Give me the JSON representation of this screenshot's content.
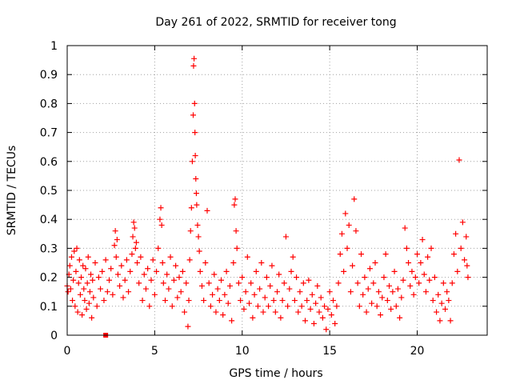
{
  "chart_data": {
    "type": "scatter",
    "title": "Day 261 of 2022, SRMTID for receiver tong",
    "xlabel": "GPS time / hours",
    "ylabel": "SRMTID / TECUs",
    "xlim": [
      0,
      24
    ],
    "ylim": [
      0,
      1
    ],
    "xticks": [
      0,
      5,
      10,
      15,
      20
    ],
    "xtick_labels": [
      "0",
      "5",
      "10",
      "15",
      "20"
    ],
    "yticks": [
      0,
      0.1,
      0.2,
      0.3,
      0.4,
      0.5,
      0.6,
      0.7,
      0.8,
      0.9,
      1
    ],
    "ytick_labels": [
      "0",
      "0.1",
      "0.2",
      "0.3",
      "0.4",
      "0.5",
      "0.6",
      "0.7",
      "0.8",
      "0.9",
      "1"
    ],
    "grid": true,
    "marker": "+",
    "color": "#ff0000",
    "series": [
      {
        "name": "SRMTID",
        "points": [
          [
            0.0,
            0.17
          ],
          [
            0.05,
            0.15
          ],
          [
            0.1,
            0.21
          ],
          [
            0.15,
            0.24
          ],
          [
            0.2,
            0.16
          ],
          [
            0.25,
            0.27
          ],
          [
            0.3,
            0.12
          ],
          [
            0.35,
            0.19
          ],
          [
            0.4,
            0.29
          ],
          [
            0.45,
            0.1
          ],
          [
            0.5,
            0.22
          ],
          [
            0.55,
            0.3
          ],
          [
            0.6,
            0.08
          ],
          [
            0.65,
            0.18
          ],
          [
            0.7,
            0.26
          ],
          [
            0.75,
            0.14
          ],
          [
            0.8,
            0.2
          ],
          [
            0.85,
            0.07
          ],
          [
            0.9,
            0.24
          ],
          [
            0.95,
            0.16
          ],
          [
            1.0,
            0.12
          ],
          [
            1.05,
            0.23
          ],
          [
            1.1,
            0.09
          ],
          [
            1.15,
            0.18
          ],
          [
            1.2,
            0.27
          ],
          [
            1.25,
            0.11
          ],
          [
            1.3,
            0.15
          ],
          [
            1.35,
            0.21
          ],
          [
            1.4,
            0.06
          ],
          [
            1.45,
            0.19
          ],
          [
            1.5,
            0.13
          ],
          [
            1.6,
            0.25
          ],
          [
            1.7,
            0.1
          ],
          [
            1.8,
            0.2
          ],
          [
            1.9,
            0.16
          ],
          [
            2.0,
            0.22
          ],
          [
            2.1,
            0.12
          ],
          [
            2.2,
            0.26
          ],
          [
            2.3,
            0.15
          ],
          [
            2.4,
            0.19
          ],
          [
            2.5,
            0.23
          ],
          [
            2.6,
            0.14
          ],
          [
            2.7,
            0.31
          ],
          [
            2.75,
            0.36
          ],
          [
            2.8,
            0.27
          ],
          [
            2.85,
            0.33
          ],
          [
            2.9,
            0.21
          ],
          [
            3.0,
            0.17
          ],
          [
            3.1,
            0.24
          ],
          [
            3.2,
            0.13
          ],
          [
            3.3,
            0.19
          ],
          [
            3.4,
            0.26
          ],
          [
            3.5,
            0.15
          ],
          [
            3.6,
            0.22
          ],
          [
            3.7,
            0.28
          ],
          [
            3.75,
            0.34
          ],
          [
            3.8,
            0.39
          ],
          [
            3.85,
            0.37
          ],
          [
            3.9,
            0.3
          ],
          [
            3.95,
            0.32
          ],
          [
            4.0,
            0.25
          ],
          [
            4.1,
            0.18
          ],
          [
            4.2,
            0.27
          ],
          [
            4.3,
            0.12
          ],
          [
            4.4,
            0.21
          ],
          [
            4.5,
            0.16
          ],
          [
            4.6,
            0.23
          ],
          [
            4.7,
            0.1
          ],
          [
            4.8,
            0.19
          ],
          [
            4.9,
            0.26
          ],
          [
            5.0,
            0.14
          ],
          [
            5.1,
            0.22
          ],
          [
            5.2,
            0.3
          ],
          [
            5.3,
            0.4
          ],
          [
            5.35,
            0.44
          ],
          [
            5.4,
            0.38
          ],
          [
            5.45,
            0.25
          ],
          [
            5.5,
            0.18
          ],
          [
            5.6,
            0.12
          ],
          [
            5.7,
            0.21
          ],
          [
            5.8,
            0.16
          ],
          [
            5.9,
            0.27
          ],
          [
            6.0,
            0.1
          ],
          [
            6.1,
            0.19
          ],
          [
            6.2,
            0.24
          ],
          [
            6.3,
            0.13
          ],
          [
            6.4,
            0.2
          ],
          [
            6.5,
            0.15
          ],
          [
            6.6,
            0.22
          ],
          [
            6.7,
            0.08
          ],
          [
            6.8,
            0.18
          ],
          [
            6.9,
            0.03
          ],
          [
            6.95,
            0.12
          ],
          [
            7.0,
            0.26
          ],
          [
            7.05,
            0.36
          ],
          [
            7.1,
            0.44
          ],
          [
            7.15,
            0.6
          ],
          [
            7.2,
            0.76
          ],
          [
            7.22,
            0.93
          ],
          [
            7.25,
            0.955
          ],
          [
            7.28,
            0.8
          ],
          [
            7.3,
            0.7
          ],
          [
            7.32,
            0.62
          ],
          [
            7.35,
            0.54
          ],
          [
            7.38,
            0.49
          ],
          [
            7.4,
            0.45
          ],
          [
            7.45,
            0.38
          ],
          [
            7.5,
            0.34
          ],
          [
            7.55,
            0.29
          ],
          [
            7.6,
            0.22
          ],
          [
            7.7,
            0.17
          ],
          [
            7.8,
            0.12
          ],
          [
            7.9,
            0.25
          ],
          [
            8.0,
            0.43
          ],
          [
            8.1,
            0.18
          ],
          [
            8.2,
            0.1
          ],
          [
            8.3,
            0.14
          ],
          [
            8.4,
            0.21
          ],
          [
            8.5,
            0.08
          ],
          [
            8.6,
            0.16
          ],
          [
            8.7,
            0.12
          ],
          [
            8.8,
            0.19
          ],
          [
            8.9,
            0.07
          ],
          [
            9.0,
            0.14
          ],
          [
            9.1,
            0.22
          ],
          [
            9.2,
            0.11
          ],
          [
            9.3,
            0.17
          ],
          [
            9.4,
            0.05
          ],
          [
            9.5,
            0.25
          ],
          [
            9.55,
            0.45
          ],
          [
            9.6,
            0.47
          ],
          [
            9.65,
            0.36
          ],
          [
            9.7,
            0.3
          ],
          [
            9.8,
            0.18
          ],
          [
            9.9,
            0.12
          ],
          [
            10.0,
            0.2
          ],
          [
            10.1,
            0.09
          ],
          [
            10.2,
            0.15
          ],
          [
            10.3,
            0.27
          ],
          [
            10.4,
            0.11
          ],
          [
            10.5,
            0.18
          ],
          [
            10.6,
            0.06
          ],
          [
            10.7,
            0.14
          ],
          [
            10.8,
            0.22
          ],
          [
            10.9,
            0.1
          ],
          [
            11.0,
            0.16
          ],
          [
            11.1,
            0.25
          ],
          [
            11.2,
            0.08
          ],
          [
            11.3,
            0.13
          ],
          [
            11.4,
            0.2
          ],
          [
            11.5,
            0.1
          ],
          [
            11.6,
            0.17
          ],
          [
            11.7,
            0.24
          ],
          [
            11.8,
            0.12
          ],
          [
            11.9,
            0.08
          ],
          [
            12.0,
            0.15
          ],
          [
            12.1,
            0.21
          ],
          [
            12.2,
            0.06
          ],
          [
            12.3,
            0.12
          ],
          [
            12.4,
            0.18
          ],
          [
            12.5,
            0.34
          ],
          [
            12.6,
            0.1
          ],
          [
            12.7,
            0.16
          ],
          [
            12.8,
            0.22
          ],
          [
            12.9,
            0.27
          ],
          [
            13.0,
            0.12
          ],
          [
            13.1,
            0.2
          ],
          [
            13.2,
            0.08
          ],
          [
            13.3,
            0.15
          ],
          [
            13.4,
            0.1
          ],
          [
            13.5,
            0.18
          ],
          [
            13.6,
            0.05
          ],
          [
            13.7,
            0.12
          ],
          [
            13.8,
            0.19
          ],
          [
            13.9,
            0.09
          ],
          [
            14.0,
            0.14
          ],
          [
            14.1,
            0.04
          ],
          [
            14.2,
            0.11
          ],
          [
            14.3,
            0.17
          ],
          [
            14.4,
            0.08
          ],
          [
            14.5,
            0.13
          ],
          [
            14.6,
            0.06
          ],
          [
            14.7,
            0.1
          ],
          [
            14.8,
            0.02
          ],
          [
            14.9,
            0.09
          ],
          [
            15.0,
            0.15
          ],
          [
            15.1,
            0.07
          ],
          [
            15.2,
            0.12
          ],
          [
            15.3,
            0.04
          ],
          [
            15.4,
            0.1
          ],
          [
            15.5,
            0.18
          ],
          [
            15.6,
            0.28
          ],
          [
            15.7,
            0.35
          ],
          [
            15.8,
            0.22
          ],
          [
            15.9,
            0.42
          ],
          [
            16.0,
            0.3
          ],
          [
            16.1,
            0.38
          ],
          [
            16.2,
            0.15
          ],
          [
            16.3,
            0.24
          ],
          [
            16.4,
            0.47
          ],
          [
            16.5,
            0.36
          ],
          [
            16.6,
            0.18
          ],
          [
            16.7,
            0.1
          ],
          [
            16.8,
            0.28
          ],
          [
            16.9,
            0.14
          ],
          [
            17.0,
            0.2
          ],
          [
            17.1,
            0.08
          ],
          [
            17.2,
            0.16
          ],
          [
            17.3,
            0.23
          ],
          [
            17.4,
            0.11
          ],
          [
            17.5,
            0.18
          ],
          [
            17.6,
            0.25
          ],
          [
            17.7,
            0.1
          ],
          [
            17.8,
            0.15
          ],
          [
            17.9,
            0.07
          ],
          [
            18.0,
            0.13
          ],
          [
            18.1,
            0.2
          ],
          [
            18.2,
            0.28
          ],
          [
            18.3,
            0.12
          ],
          [
            18.4,
            0.17
          ],
          [
            18.5,
            0.09
          ],
          [
            18.6,
            0.15
          ],
          [
            18.7,
            0.22
          ],
          [
            18.8,
            0.1
          ],
          [
            18.9,
            0.16
          ],
          [
            19.0,
            0.06
          ],
          [
            19.1,
            0.13
          ],
          [
            19.2,
            0.19
          ],
          [
            19.3,
            0.37
          ],
          [
            19.4,
            0.3
          ],
          [
            19.5,
            0.25
          ],
          [
            19.6,
            0.17
          ],
          [
            19.7,
            0.22
          ],
          [
            19.8,
            0.14
          ],
          [
            19.9,
            0.2
          ],
          [
            20.0,
            0.28
          ],
          [
            20.1,
            0.18
          ],
          [
            20.2,
            0.25
          ],
          [
            20.3,
            0.33
          ],
          [
            20.4,
            0.21
          ],
          [
            20.5,
            0.15
          ],
          [
            20.6,
            0.27
          ],
          [
            20.7,
            0.19
          ],
          [
            20.8,
            0.3
          ],
          [
            20.9,
            0.12
          ],
          [
            21.0,
            0.2
          ],
          [
            21.1,
            0.08
          ],
          [
            21.2,
            0.14
          ],
          [
            21.3,
            0.05
          ],
          [
            21.4,
            0.11
          ],
          [
            21.5,
            0.18
          ],
          [
            21.6,
            0.09
          ],
          [
            21.7,
            0.15
          ],
          [
            21.8,
            0.12
          ],
          [
            21.9,
            0.05
          ],
          [
            22.0,
            0.18
          ],
          [
            22.1,
            0.28
          ],
          [
            22.2,
            0.35
          ],
          [
            22.3,
            0.22
          ],
          [
            22.4,
            0.605
          ],
          [
            22.5,
            0.3
          ],
          [
            22.6,
            0.39
          ],
          [
            22.7,
            0.26
          ],
          [
            22.8,
            0.34
          ],
          [
            22.85,
            0.24
          ],
          [
            22.9,
            0.2
          ]
        ]
      }
    ],
    "highlight_points": [
      [
        2.2,
        0
      ]
    ]
  }
}
